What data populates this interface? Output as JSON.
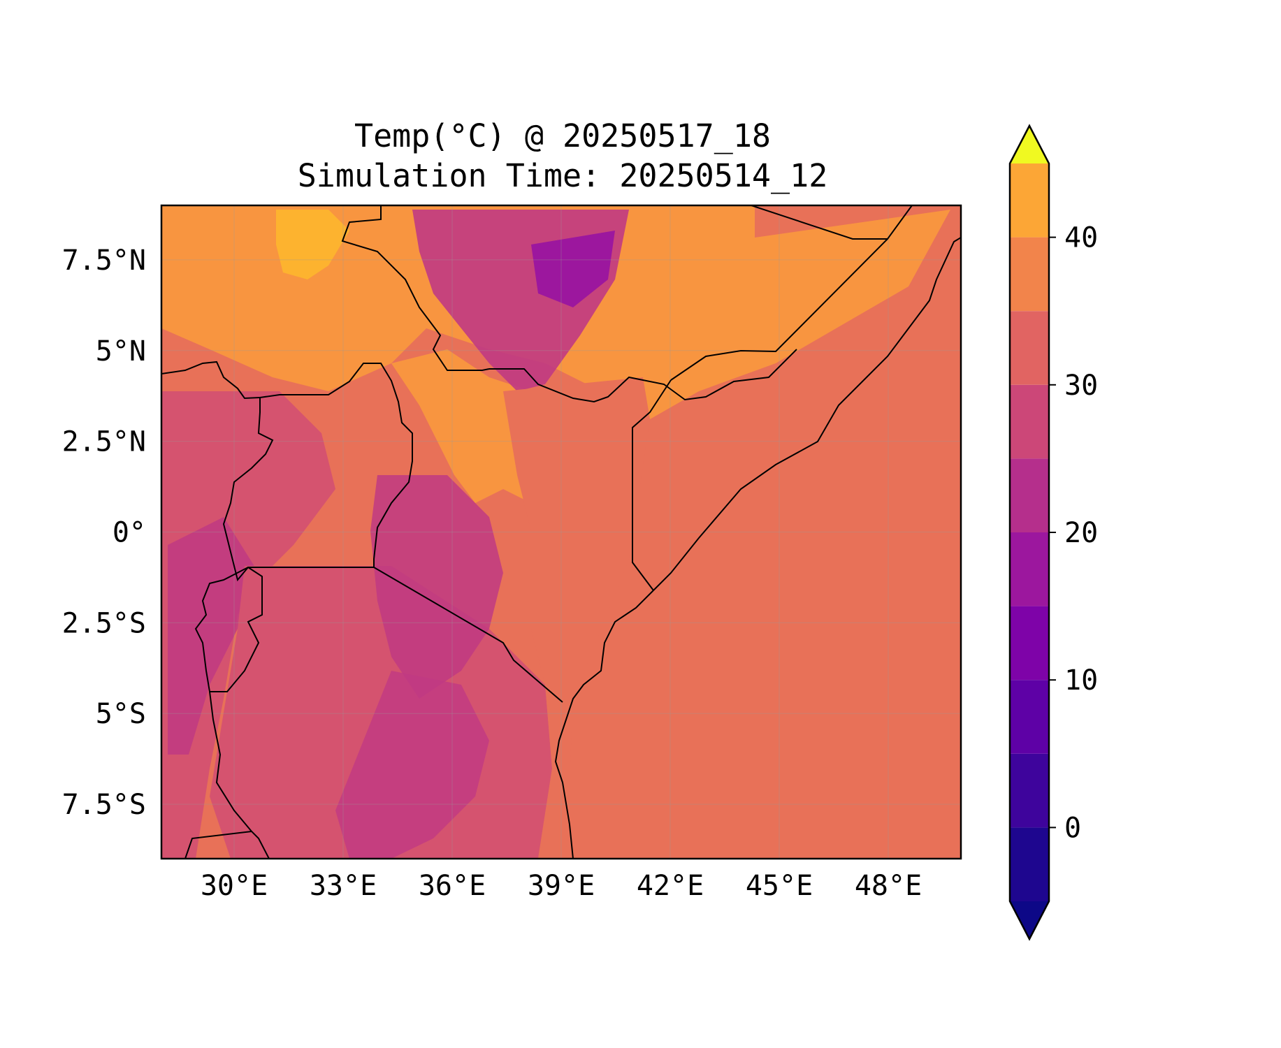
{
  "title": {
    "line1": "Temp(°C) @ 20250517_18",
    "line2": "Simulation Time: 20250514_12"
  },
  "map": {
    "lon_range": [
      28,
      50
    ],
    "lat_range": [
      -9,
      9
    ],
    "lon_ticks": [
      {
        "value": 30,
        "label": "30°E"
      },
      {
        "value": 33,
        "label": "33°E"
      },
      {
        "value": 36,
        "label": "36°E"
      },
      {
        "value": 39,
        "label": "39°E"
      },
      {
        "value": 42,
        "label": "42°E"
      },
      {
        "value": 45,
        "label": "45°E"
      },
      {
        "value": 48,
        "label": "48°E"
      }
    ],
    "lat_ticks": [
      {
        "value": 7.5,
        "label": "7.5°N"
      },
      {
        "value": 5,
        "label": "5°N"
      },
      {
        "value": 2.5,
        "label": "2.5°N"
      },
      {
        "value": 0,
        "label": "0°"
      },
      {
        "value": -2.5,
        "label": "2.5°S"
      },
      {
        "value": -5,
        "label": "5°S"
      },
      {
        "value": -7.5,
        "label": "7.5°S"
      }
    ],
    "gridlines": true,
    "ocean_color": "#e87158",
    "colors": {
      "c15": "#c03a83",
      "c20": "#d5536f",
      "c25": "#e87158",
      "c30": "#f89540",
      "c35": "#fdb32f",
      "c40": "#f4e13a",
      "c10": "#9c179e",
      "c5": "#7e03a8",
      "c0": "#5302a3"
    }
  },
  "colorbar": {
    "levels": [
      -5,
      0,
      5,
      10,
      15,
      20,
      25,
      30,
      35,
      40,
      45
    ],
    "colors": [
      "#1e068f",
      "#3e049c",
      "#5e01a6",
      "#7e03a8",
      "#9c179e",
      "#b52f8c",
      "#cc4778",
      "#e16462",
      "#f2844b",
      "#fca636",
      "#f0f921"
    ],
    "ticks": [
      {
        "value": 0,
        "label": "0"
      },
      {
        "value": 10,
        "label": "10"
      },
      {
        "value": 20,
        "label": "20"
      },
      {
        "value": 30,
        "label": "30"
      },
      {
        "value": 40,
        "label": "40"
      }
    ],
    "extend": "both"
  }
}
